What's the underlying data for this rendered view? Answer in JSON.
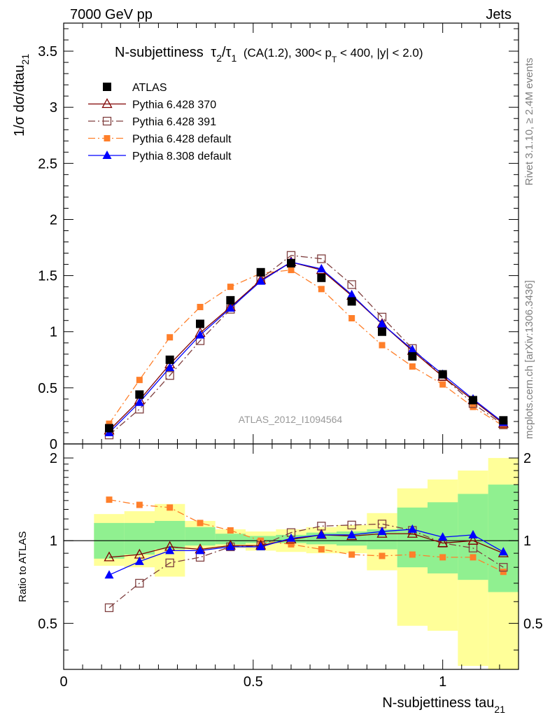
{
  "header": {
    "left": "7000 GeV pp",
    "right": "Jets"
  },
  "side": {
    "rivet": "Rivet 3.1.10, ≥ 2.4M events",
    "mcplots": "mcplots.cern.ch [arXiv:1306.3436]"
  },
  "chart_data": [
    {
      "type": "scatter",
      "panel": "main",
      "title_main": "N-subjettiness",
      "title_selection": "(CA(1.2), 300< p",
      "title_selection_tail": " < 400, |y| < 2.0)",
      "ylabel": "1/σ dσ/dtau",
      "ylabel_sub": "21",
      "watermark": "ATLAS_2012_I1094564",
      "xlim": [
        0,
        1.2
      ],
      "ylim": [
        0,
        3.75
      ],
      "yticks": [
        0,
        0.5,
        1,
        1.5,
        2,
        2.5,
        3,
        3.5
      ],
      "ytick_labels": [
        "0",
        "0.5",
        "1",
        "1.5",
        "2",
        "2.5",
        "3",
        "3.5"
      ],
      "x": [
        0.12,
        0.2,
        0.28,
        0.36,
        0.44,
        0.52,
        0.6,
        0.68,
        0.76,
        0.84,
        0.92,
        1.0,
        1.08,
        1.16
      ],
      "series": [
        {
          "name": "ATLAS",
          "marker": "square-filled",
          "color": "#000000",
          "line": "none",
          "values": [
            0.14,
            0.44,
            0.75,
            1.07,
            1.28,
            1.53,
            1.61,
            1.48,
            1.27,
            1.0,
            0.78,
            0.62,
            0.39,
            0.21
          ]
        },
        {
          "name": "Pythia 6.428 370",
          "marker": "triangle-open",
          "color": "#7f0000",
          "line": "solid",
          "values": [
            0.12,
            0.39,
            0.71,
            0.99,
            1.22,
            1.46,
            1.62,
            1.55,
            1.32,
            1.07,
            0.83,
            0.6,
            0.39,
            0.18
          ]
        },
        {
          "name": "Pythia 6.428 391",
          "marker": "square-open",
          "color": "#7f3f3f",
          "line": "dashdot",
          "values": [
            0.08,
            0.31,
            0.61,
            0.92,
            1.2,
            1.47,
            1.68,
            1.65,
            1.42,
            1.13,
            0.85,
            0.6,
            0.36,
            0.17
          ]
        },
        {
          "name": "Pythia 6.428 default",
          "marker": "square-filled-small",
          "color": "#ff7f2a",
          "line": "dashdot",
          "values": [
            0.18,
            0.57,
            0.95,
            1.22,
            1.4,
            1.52,
            1.55,
            1.38,
            1.12,
            0.88,
            0.69,
            0.53,
            0.33,
            0.16
          ]
        },
        {
          "name": "Pythia 8.308 default",
          "marker": "triangle-filled",
          "color": "#0000ff",
          "line": "solid",
          "values": [
            0.1,
            0.37,
            0.68,
            0.97,
            1.21,
            1.45,
            1.62,
            1.56,
            1.33,
            1.07,
            0.84,
            0.62,
            0.4,
            0.19
          ]
        }
      ]
    },
    {
      "type": "scatter",
      "panel": "ratio",
      "ylabel": "Ratio to ATLAS",
      "xlabel": "N-subjettiness tau",
      "xlabel_sub": "21",
      "scale": "log",
      "xlim": [
        0,
        1.2
      ],
      "ylim": [
        0.34,
        2.25
      ],
      "xticks": [
        0,
        0.5,
        1
      ],
      "xtick_labels": [
        "0",
        "0.5",
        "1"
      ],
      "yticks": [
        0.5,
        1,
        2
      ],
      "ytick_labels": [
        "0.5",
        "1",
        "2"
      ],
      "x": [
        0.12,
        0.2,
        0.28,
        0.36,
        0.44,
        0.52,
        0.6,
        0.68,
        0.76,
        0.84,
        0.92,
        1.0,
        1.08,
        1.16
      ],
      "bin_edges": [
        0.08,
        0.16,
        0.24,
        0.32,
        0.4,
        0.48,
        0.56,
        0.64,
        0.72,
        0.8,
        0.88,
        0.96,
        1.04,
        1.12,
        1.2
      ],
      "band_inner": [
        [
          0.86,
          1.16
        ],
        [
          0.89,
          1.16
        ],
        [
          0.93,
          1.18
        ],
        [
          0.96,
          1.12
        ],
        [
          0.97,
          1.06
        ],
        [
          0.98,
          1.04
        ],
        [
          0.98,
          1.05
        ],
        [
          0.97,
          1.07
        ],
        [
          0.96,
          1.08
        ],
        [
          0.93,
          1.1
        ],
        [
          0.8,
          1.32
        ],
        [
          0.76,
          1.38
        ],
        [
          0.72,
          1.48
        ],
        [
          0.65,
          1.6
        ]
      ],
      "band_outer": [
        [
          0.81,
          1.25
        ],
        [
          0.8,
          1.28
        ],
        [
          0.74,
          1.36
        ],
        [
          0.93,
          1.18
        ],
        [
          0.94,
          1.1
        ],
        [
          0.92,
          1.08
        ],
        [
          0.91,
          1.1
        ],
        [
          0.9,
          1.12
        ],
        [
          0.9,
          1.14
        ],
        [
          0.78,
          1.26
        ],
        [
          0.49,
          1.55
        ],
        [
          0.47,
          1.67
        ],
        [
          0.35,
          1.8
        ],
        [
          0.34,
          2.0
        ]
      ],
      "band_colors": {
        "inner": "#90f090",
        "outer": "#ffff99"
      },
      "series": [
        {
          "name": "Pythia 6.428 370",
          "marker": "triangle-open",
          "color": "#7f0000",
          "line": "solid",
          "values": [
            0.87,
            0.89,
            0.95,
            0.93,
            0.96,
            0.96,
            1.01,
            1.05,
            1.04,
            1.06,
            1.06,
            0.98,
            1.0,
            0.9
          ]
        },
        {
          "name": "Pythia 6.428 391",
          "marker": "square-open",
          "color": "#7f3f3f",
          "line": "dashdot",
          "values": [
            0.57,
            0.7,
            0.83,
            0.87,
            0.95,
            0.96,
            1.07,
            1.13,
            1.14,
            1.15,
            1.09,
            0.98,
            0.94,
            0.8
          ]
        },
        {
          "name": "Pythia 6.428 default",
          "marker": "square-filled-small",
          "color": "#ff7f2a",
          "line": "dashdot",
          "values": [
            1.41,
            1.35,
            1.32,
            1.16,
            1.09,
            1.0,
            0.97,
            0.93,
            0.89,
            0.88,
            0.89,
            0.87,
            0.87,
            0.77
          ]
        },
        {
          "name": "Pythia 8.308 default",
          "marker": "triangle-filled",
          "color": "#0000ff",
          "line": "solid",
          "values": [
            0.75,
            0.84,
            0.92,
            0.92,
            0.95,
            0.95,
            1.02,
            1.05,
            1.05,
            1.08,
            1.1,
            1.03,
            1.05,
            0.91
          ]
        }
      ]
    }
  ]
}
